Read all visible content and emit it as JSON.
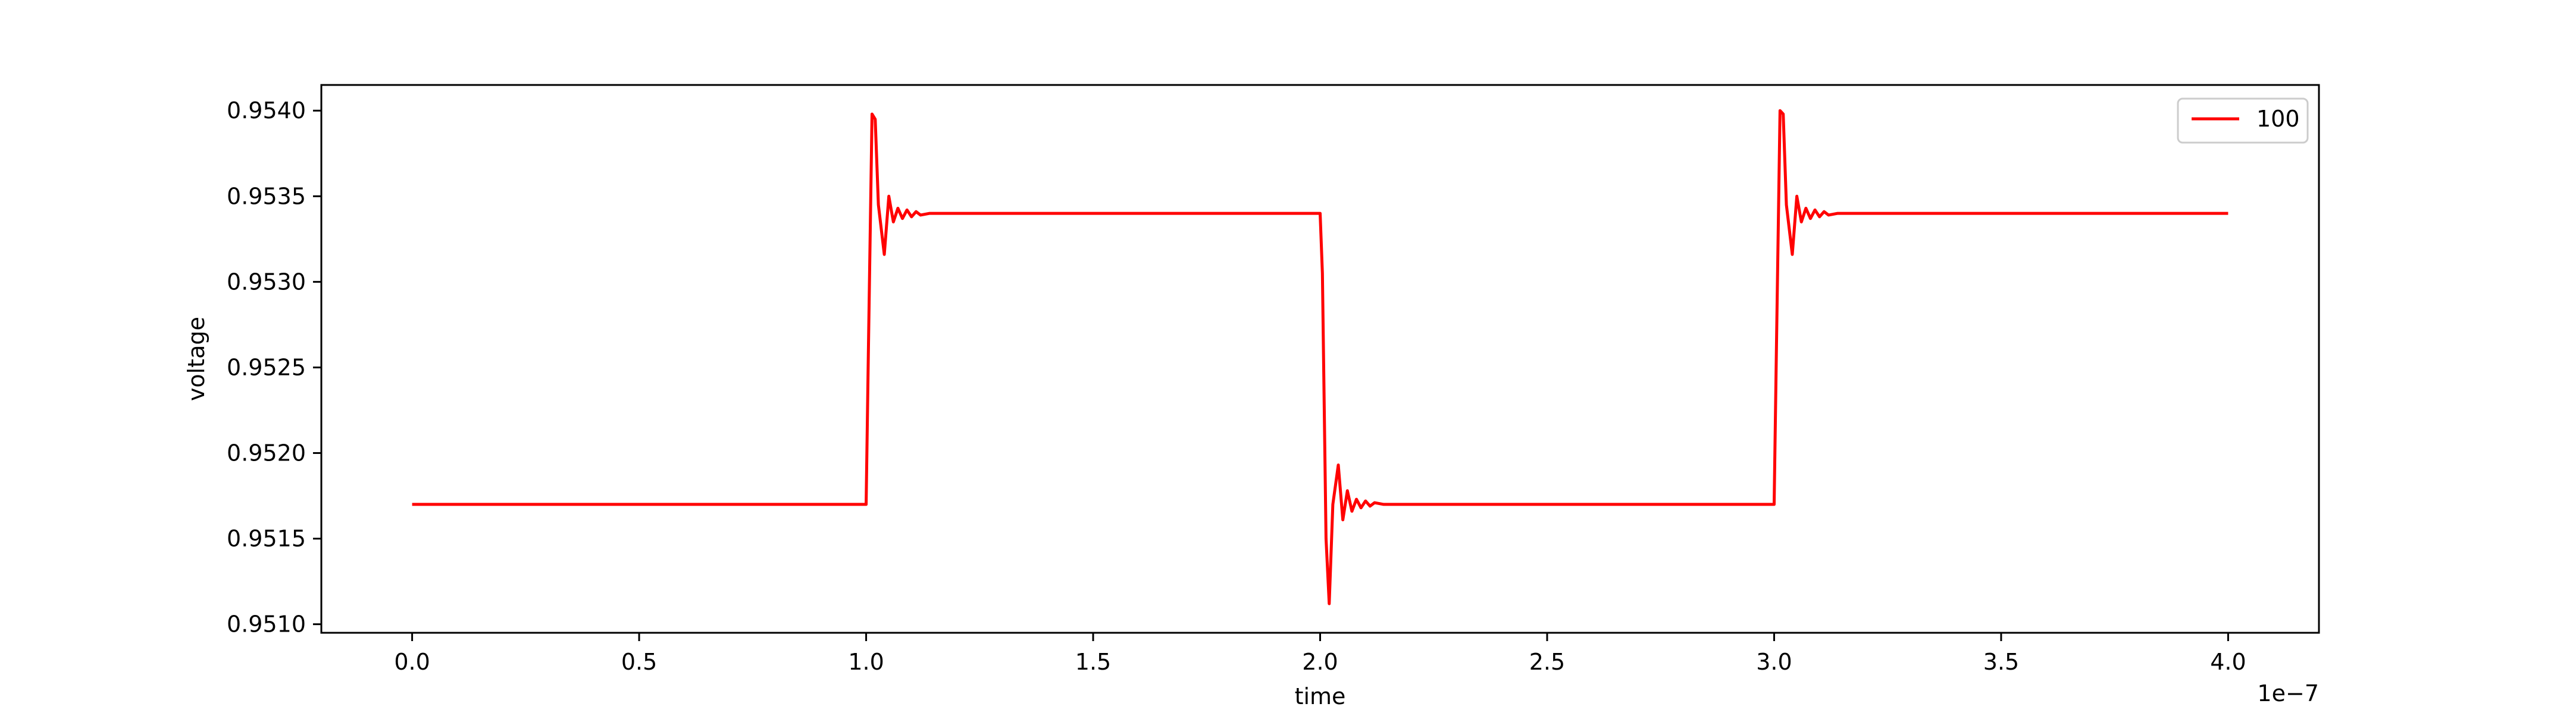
{
  "chart_data": {
    "type": "line",
    "title": "",
    "xlabel": "time",
    "ylabel": "voltage",
    "x_offset_text": "1e−7",
    "x_scale": 1e-07,
    "xlim": [
      -0.2,
      4.2
    ],
    "ylim": [
      0.95095,
      0.95415
    ],
    "x_ticks": [
      0.0,
      0.5,
      1.0,
      1.5,
      2.0,
      2.5,
      3.0,
      3.5,
      4.0
    ],
    "x_tick_labels": [
      "0.0",
      "0.5",
      "1.0",
      "1.5",
      "2.0",
      "2.5",
      "3.0",
      "3.5",
      "4.0"
    ],
    "y_ticks": [
      0.951,
      0.9515,
      0.952,
      0.9525,
      0.953,
      0.9535,
      0.954
    ],
    "y_tick_labels": [
      "0.9510",
      "0.9515",
      "0.9520",
      "0.9525",
      "0.9530",
      "0.9535",
      "0.9540"
    ],
    "grid": false,
    "legend_position": "top-right",
    "series": [
      {
        "name": "100",
        "color": "#ff0000",
        "x": [
          0.0,
          1.0,
          1.005,
          1.013,
          1.02,
          1.027,
          1.04,
          1.05,
          1.06,
          1.07,
          1.08,
          1.09,
          1.1,
          1.11,
          1.12,
          1.14,
          1.16,
          1.2,
          2.0,
          2.005,
          2.013,
          2.02,
          2.028,
          2.04,
          2.05,
          2.06,
          2.07,
          2.08,
          2.09,
          2.1,
          2.11,
          2.12,
          2.14,
          2.16,
          2.2,
          3.0,
          3.005,
          3.013,
          3.02,
          3.027,
          3.04,
          3.05,
          3.06,
          3.07,
          3.08,
          3.09,
          3.1,
          3.11,
          3.12,
          3.14,
          3.16,
          3.2,
          4.0
        ],
        "y": [
          0.9517,
          0.9517,
          0.9526,
          0.95398,
          0.95395,
          0.95345,
          0.95316,
          0.9535,
          0.95335,
          0.95343,
          0.95337,
          0.95342,
          0.95338,
          0.95341,
          0.95339,
          0.9534,
          0.9534,
          0.9534,
          0.9534,
          0.95305,
          0.9515,
          0.95112,
          0.9517,
          0.95193,
          0.95161,
          0.95178,
          0.95166,
          0.95173,
          0.95168,
          0.95172,
          0.95169,
          0.95171,
          0.9517,
          0.9517,
          0.9517,
          0.9517,
          0.9526,
          0.954,
          0.95398,
          0.95345,
          0.95316,
          0.9535,
          0.95335,
          0.95343,
          0.95337,
          0.95342,
          0.95338,
          0.95341,
          0.95339,
          0.9534,
          0.9534,
          0.9534,
          0.9534
        ]
      }
    ]
  }
}
